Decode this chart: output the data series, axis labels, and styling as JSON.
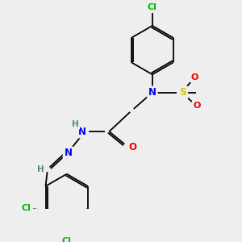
{
  "background_color": "#eeeeee",
  "bond_color": "#000000",
  "atom_colors": {
    "Cl": "#00bb00",
    "N": "#0000ee",
    "O": "#ee0000",
    "S": "#cccc00",
    "C": "#000000",
    "H": "#558888"
  }
}
